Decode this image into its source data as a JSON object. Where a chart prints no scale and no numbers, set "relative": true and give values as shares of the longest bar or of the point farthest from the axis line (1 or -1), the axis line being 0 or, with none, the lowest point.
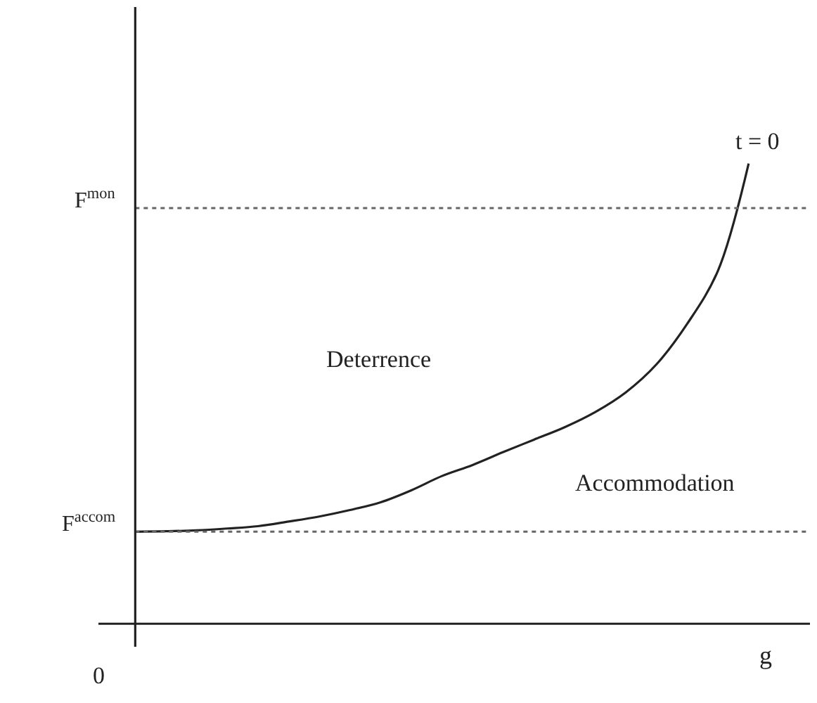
{
  "chart_data": {
    "type": "line",
    "relative": true,
    "xlabel": "g",
    "categories": [
      null,
      null,
      null,
      null,
      null,
      null,
      null,
      null,
      null,
      null,
      null,
      null,
      null,
      null,
      null,
      null,
      null,
      null,
      null,
      null,
      null
    ],
    "series": [
      {
        "color": "#222222",
        "values": [
          0.2,
          0.201,
          0.203,
          0.207,
          0.212,
          0.222,
          0.233,
          0.247,
          0.264,
          0.29,
          0.321,
          0.345,
          0.373,
          0.4,
          0.427,
          0.46,
          0.503,
          0.564,
          0.652,
          0.767,
          1.0
        ]
      }
    ],
    "ref_lines": [
      {
        "axis": "y",
        "value": 0.903,
        "label": "F$^{mon}$",
        "line_style": "dotted",
        "color": "#666666"
      },
      {
        "axis": "y",
        "value": 0.2,
        "label": "F$^{accom}$",
        "line_style": "dotted",
        "color": "#666666"
      }
    ],
    "annotations": [
      "t = 0",
      "0",
      "Deterrence",
      "Accommodation"
    ],
    "marker": "none",
    "line_style": "solid"
  }
}
